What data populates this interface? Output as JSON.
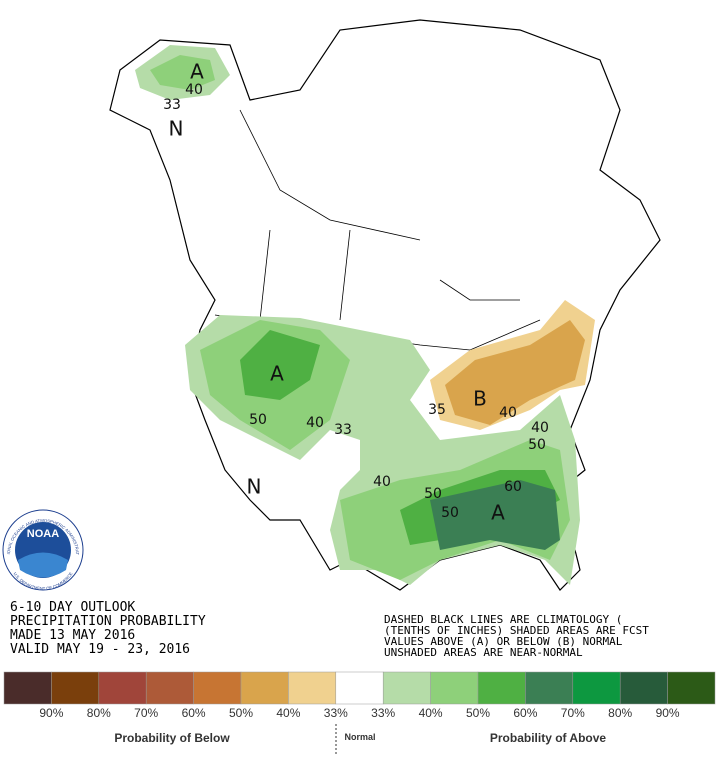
{
  "header": {
    "lines": [
      "6-10 DAY OUTLOOK",
      "PRECIPITATION PROBABILITY",
      "MADE  13 MAY 2016",
      "VALID  MAY 19 - 23, 2016"
    ]
  },
  "notes": [
    "DASHED BLACK LINES ARE CLIMATOLOGY (",
    "(TENTHS OF INCHES) SHADED AREAS ARE FCST",
    "VALUES ABOVE (A) OR BELOW (B) NORMAL",
    "UNSHADED AREAS ARE NEAR-NORMAL"
  ],
  "map_labels": [
    "A",
    "40",
    "33",
    "N",
    "A",
    "50",
    "40",
    "33",
    "N",
    "40",
    "50",
    "50",
    "60",
    "A",
    "B",
    "35",
    "40",
    "40",
    "50"
  ],
  "logo": {
    "name": "NOAA",
    "ring_top": "NATIONAL OCEANIC AND ATMOSPHERIC ADMINISTRATION",
    "ring_bottom": "U.S. DEPARTMENT OF COMMERCE"
  },
  "legend": {
    "colors": [
      "#4a2c2a",
      "#7a3f0c",
      "#a0453a",
      "#ad5a38",
      "#c77533",
      "#d9a44c",
      "#f0d18f",
      "#ffffff",
      "#b5dca8",
      "#8ed07a",
      "#4fb043",
      "#3b7f54",
      "#0d9840",
      "#275b3a",
      "#2c5a17"
    ],
    "labels": [
      "90%",
      "80%",
      "70%",
      "60%",
      "50%",
      "40%",
      "33%",
      "33%",
      "40%",
      "50%",
      "60%",
      "70%",
      "80%",
      "90%"
    ],
    "below": "Probability of Below",
    "normal": "Normal",
    "above": "Probability of Above"
  }
}
